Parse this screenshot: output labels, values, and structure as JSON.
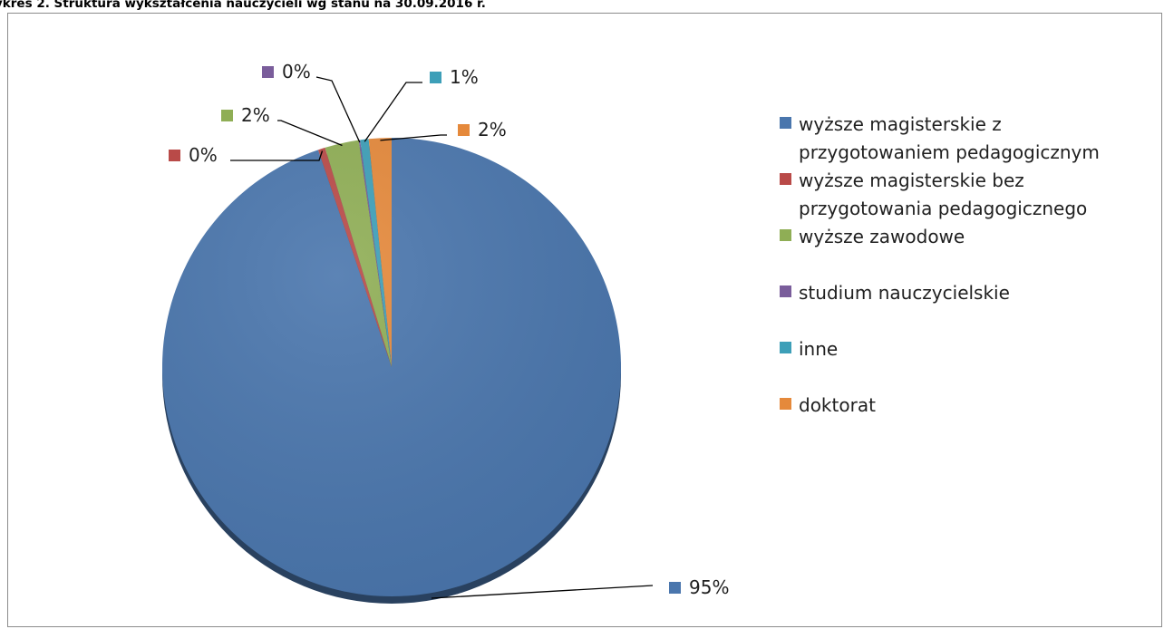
{
  "title": "ykres 2. Struktura wykształcenia nauczycieli wg stanu na 30.09.2016 r.",
  "chart_data": {
    "type": "pie",
    "title": "ykres 2. Struktura wykształcenia nauczycieli wg stanu na 30.09.2016 r.",
    "legend_position": "right",
    "slices": [
      {
        "name": "wyższe magisterskie z przygotowaniem pedagogicznym",
        "value": 95,
        "label": "95%",
        "color": "#4a76ad"
      },
      {
        "name": "wyższe magisterskie bez przygotowania pedagogicznego",
        "value": 0.5,
        "label": "0%",
        "color": "#b94a48"
      },
      {
        "name": "wyższe zawodowe",
        "value": 2.4,
        "label": "2%",
        "color": "#8fae55"
      },
      {
        "name": "studium nauczycielskie",
        "value": 0.1,
        "label": "0%",
        "color": "#7a5d9b"
      },
      {
        "name": "inne",
        "value": 0.6,
        "label": "1%",
        "color": "#3d9fb8"
      },
      {
        "name": "doktorat",
        "value": 1.6,
        "label": "2%",
        "color": "#e5893b"
      }
    ]
  }
}
